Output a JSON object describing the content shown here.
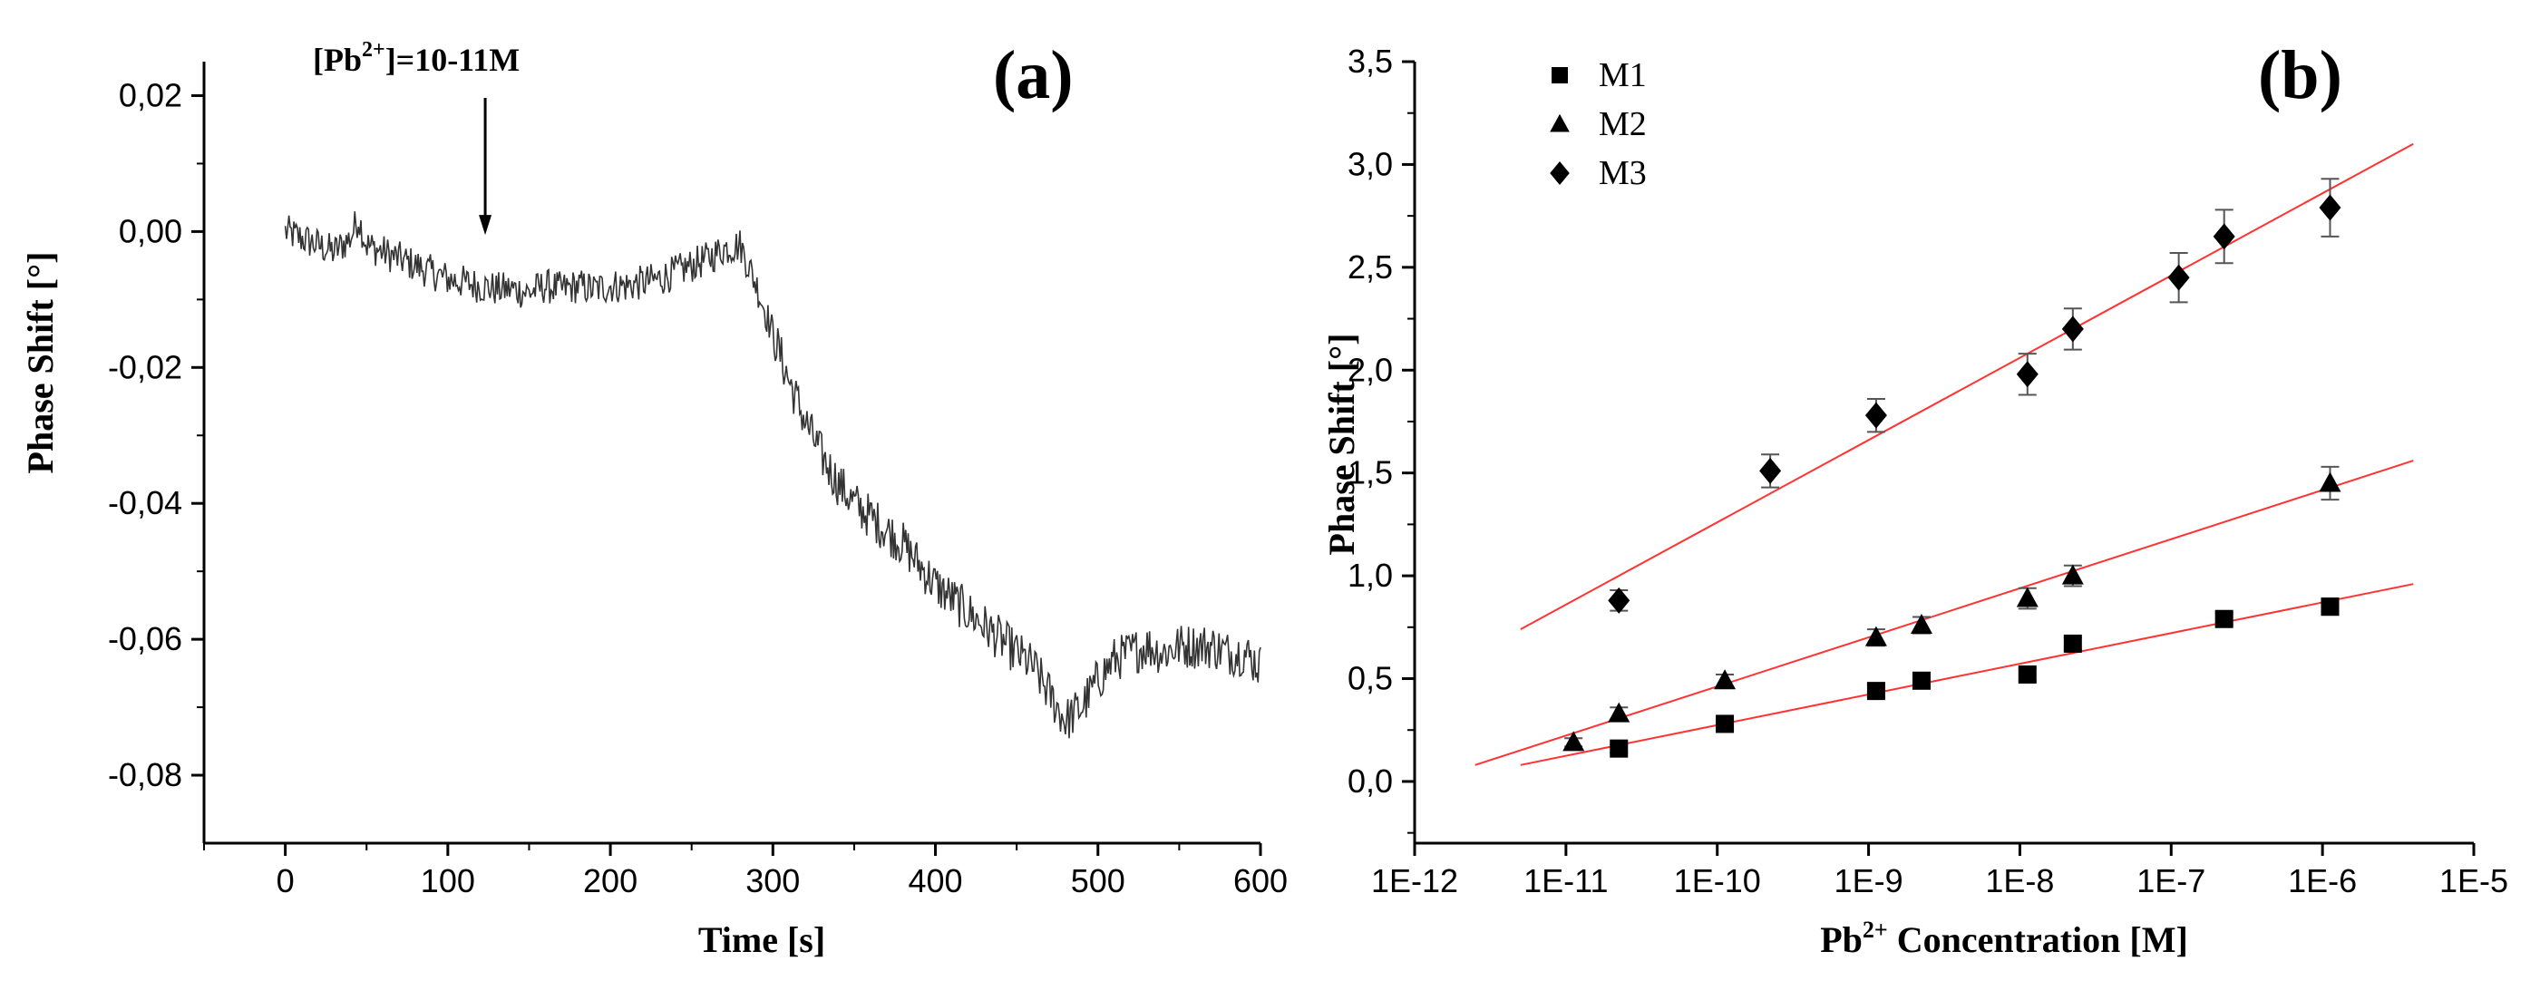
{
  "chart_data": [
    {
      "type": "line",
      "panel_label": "(a)",
      "xlabel": "Time [s]",
      "ylabel": "Phase Shift [°]",
      "xlim": [
        -50,
        600
      ],
      "ylim": [
        -0.09,
        0.025
      ],
      "xticks": [
        0,
        100,
        200,
        300,
        400,
        500,
        600
      ],
      "xtick_labels": [
        "0",
        "100",
        "200",
        "300",
        "400",
        "500",
        "600"
      ],
      "yticks": [
        0.02,
        0.0,
        -0.02,
        -0.04,
        -0.06,
        -0.08
      ],
      "ytick_labels": [
        "0,02",
        "0,00",
        "-0,02",
        "-0,04",
        "-0,06",
        "-0,08"
      ],
      "annotation": {
        "text_prefix": "[Pb",
        "superscript": "2+",
        "text_suffix": "]=10-11M",
        "arrow_x": 123,
        "arrow_y": -0.0005
      },
      "series": [
        {
          "name": "signal",
          "color": "#333333",
          "x": [
            0,
            10,
            20,
            30,
            40,
            45,
            50,
            60,
            70,
            80,
            90,
            100,
            110,
            120,
            130,
            140,
            150,
            160,
            170,
            180,
            190,
            200,
            210,
            220,
            230,
            240,
            250,
            260,
            270,
            280,
            290,
            300,
            310,
            320,
            330,
            340,
            350,
            360,
            370,
            380,
            390,
            400,
            410,
            420,
            430,
            440,
            450,
            460,
            470,
            480,
            490,
            500,
            510,
            520,
            530,
            540,
            550,
            560,
            570,
            580,
            590,
            600
          ],
          "y": [
            0.0,
            -0.001,
            -0.002,
            -0.003,
            -0.001,
            0.002,
            -0.002,
            -0.003,
            -0.004,
            -0.005,
            -0.006,
            -0.007,
            -0.0075,
            -0.008,
            -0.0085,
            -0.0085,
            -0.009,
            -0.008,
            -0.0085,
            -0.008,
            -0.0085,
            -0.008,
            -0.008,
            -0.0075,
            -0.007,
            -0.006,
            -0.005,
            -0.004,
            -0.0025,
            -0.002,
            -0.008,
            -0.015,
            -0.022,
            -0.028,
            -0.033,
            -0.037,
            -0.04,
            -0.042,
            -0.044,
            -0.046,
            -0.049,
            -0.052,
            -0.054,
            -0.056,
            -0.058,
            -0.06,
            -0.062,
            -0.064,
            -0.068,
            -0.072,
            -0.07,
            -0.066,
            -0.063,
            -0.062,
            -0.061,
            -0.062,
            -0.061,
            -0.061,
            -0.061,
            -0.062,
            -0.062,
            -0.064
          ]
        }
      ]
    },
    {
      "type": "scatter",
      "panel_label": "(b)",
      "xlabel_prefix": "Pb",
      "xlabel_superscript": "2+",
      "xlabel_suffix": " Concentration [M]",
      "ylabel": "Phase Shift [°]",
      "xscale": "log",
      "xlim_log10": [
        -12,
        -5
      ],
      "ylim": [
        -0.3,
        3.5
      ],
      "xticks_log10": [
        -12,
        -11,
        -10,
        -9,
        -8,
        -7,
        -6,
        -5
      ],
      "xtick_labels": [
        "1E-12",
        "1E-11",
        "1E-10",
        "1E-9",
        "1E-8",
        "1E-7",
        "1E-6",
        "1E-5"
      ],
      "yticks": [
        0.0,
        0.5,
        1.0,
        1.5,
        2.0,
        2.5,
        3.0,
        3.5
      ],
      "ytick_labels": [
        "0,0",
        "0,5",
        "1,0",
        "1,5",
        "2,0",
        "2,5",
        "3,0",
        "3,5"
      ],
      "legend_position": "top-left",
      "fit_color": "#ff3333",
      "series": [
        {
          "name": "M1",
          "marker": "square",
          "x_log10": [
            -10.65,
            -9.95,
            -8.95,
            -8.65,
            -7.95,
            -7.65,
            -6.65,
            -5.95
          ],
          "y": [
            0.16,
            0.28,
            0.44,
            0.49,
            0.52,
            0.67,
            0.79,
            0.85
          ],
          "yerr": [
            0.02,
            0.02,
            0.03,
            0.03,
            0.03,
            0.03,
            0.03,
            0.04
          ],
          "fit_x_log10": [
            -11.3,
            -5.4
          ],
          "fit_y": [
            0.08,
            0.96
          ]
        },
        {
          "name": "M2",
          "marker": "triangle",
          "x_log10": [
            -10.95,
            -10.65,
            -9.95,
            -8.95,
            -8.65,
            -7.95,
            -7.65,
            -5.95
          ],
          "y": [
            0.19,
            0.33,
            0.49,
            0.7,
            0.76,
            0.89,
            1.0,
            1.45
          ],
          "yerr": [
            0.02,
            0.03,
            0.03,
            0.04,
            0.04,
            0.05,
            0.05,
            0.08
          ],
          "fit_x_log10": [
            -11.6,
            -5.4
          ],
          "fit_y": [
            0.08,
            1.56
          ]
        },
        {
          "name": "M3",
          "marker": "diamond",
          "x_log10": [
            -10.65,
            -9.65,
            -8.95,
            -7.95,
            -7.65,
            -6.95,
            -6.65,
            -5.95
          ],
          "y": [
            0.88,
            1.51,
            1.78,
            1.98,
            2.2,
            2.45,
            2.65,
            2.79
          ],
          "yerr": [
            0.05,
            0.08,
            0.08,
            0.1,
            0.1,
            0.12,
            0.13,
            0.14
          ],
          "fit_x_log10": [
            -11.3,
            -5.4
          ],
          "fit_y": [
            0.74,
            3.1
          ]
        }
      ]
    }
  ]
}
